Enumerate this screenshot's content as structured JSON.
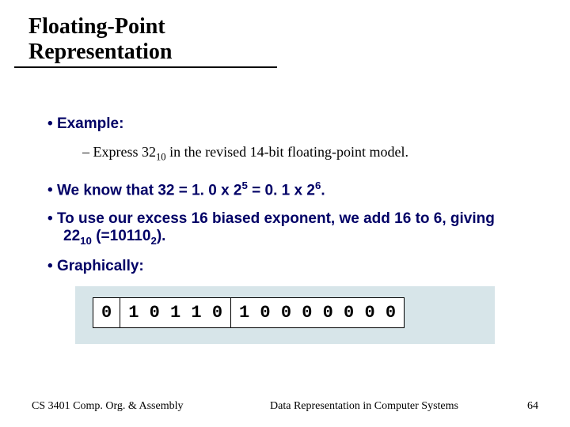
{
  "title": "Floating-Point Representation",
  "bullets": {
    "b1": "Example:",
    "b1a_pre": "Express 32",
    "b1a_sub": "10",
    "b1a_post": " in the revised 14-bit floating-point model.",
    "b2_pre": "We know that 32 = 1. 0 x 2",
    "b2_sup1": "5",
    "b2_mid": " = 0. 1 x 2",
    "b2_sup2": "6",
    "b2_post": ".",
    "b3_pre": "To use our excess 16 biased exponent, we add 16 to 6, giving 22",
    "b3_sub1": "10",
    "b3_mid": " (=10110",
    "b3_sub2": "2",
    "b3_post": ").",
    "b4": "Graphically:"
  },
  "diagram": {
    "background": "#d7e5e9",
    "cell_bg": "#ffffff",
    "cell_border": "#000000",
    "shadow": "#9bb0b7",
    "font": "Courier New",
    "sign": "0",
    "exponent": "1 0 1 1 0",
    "mantissa": "1 0 0 0 0 0 0 0"
  },
  "footer": {
    "left": "CS 3401 Comp. Org. & Assembly",
    "center": "Data Representation in Computer Systems",
    "page": "64"
  }
}
